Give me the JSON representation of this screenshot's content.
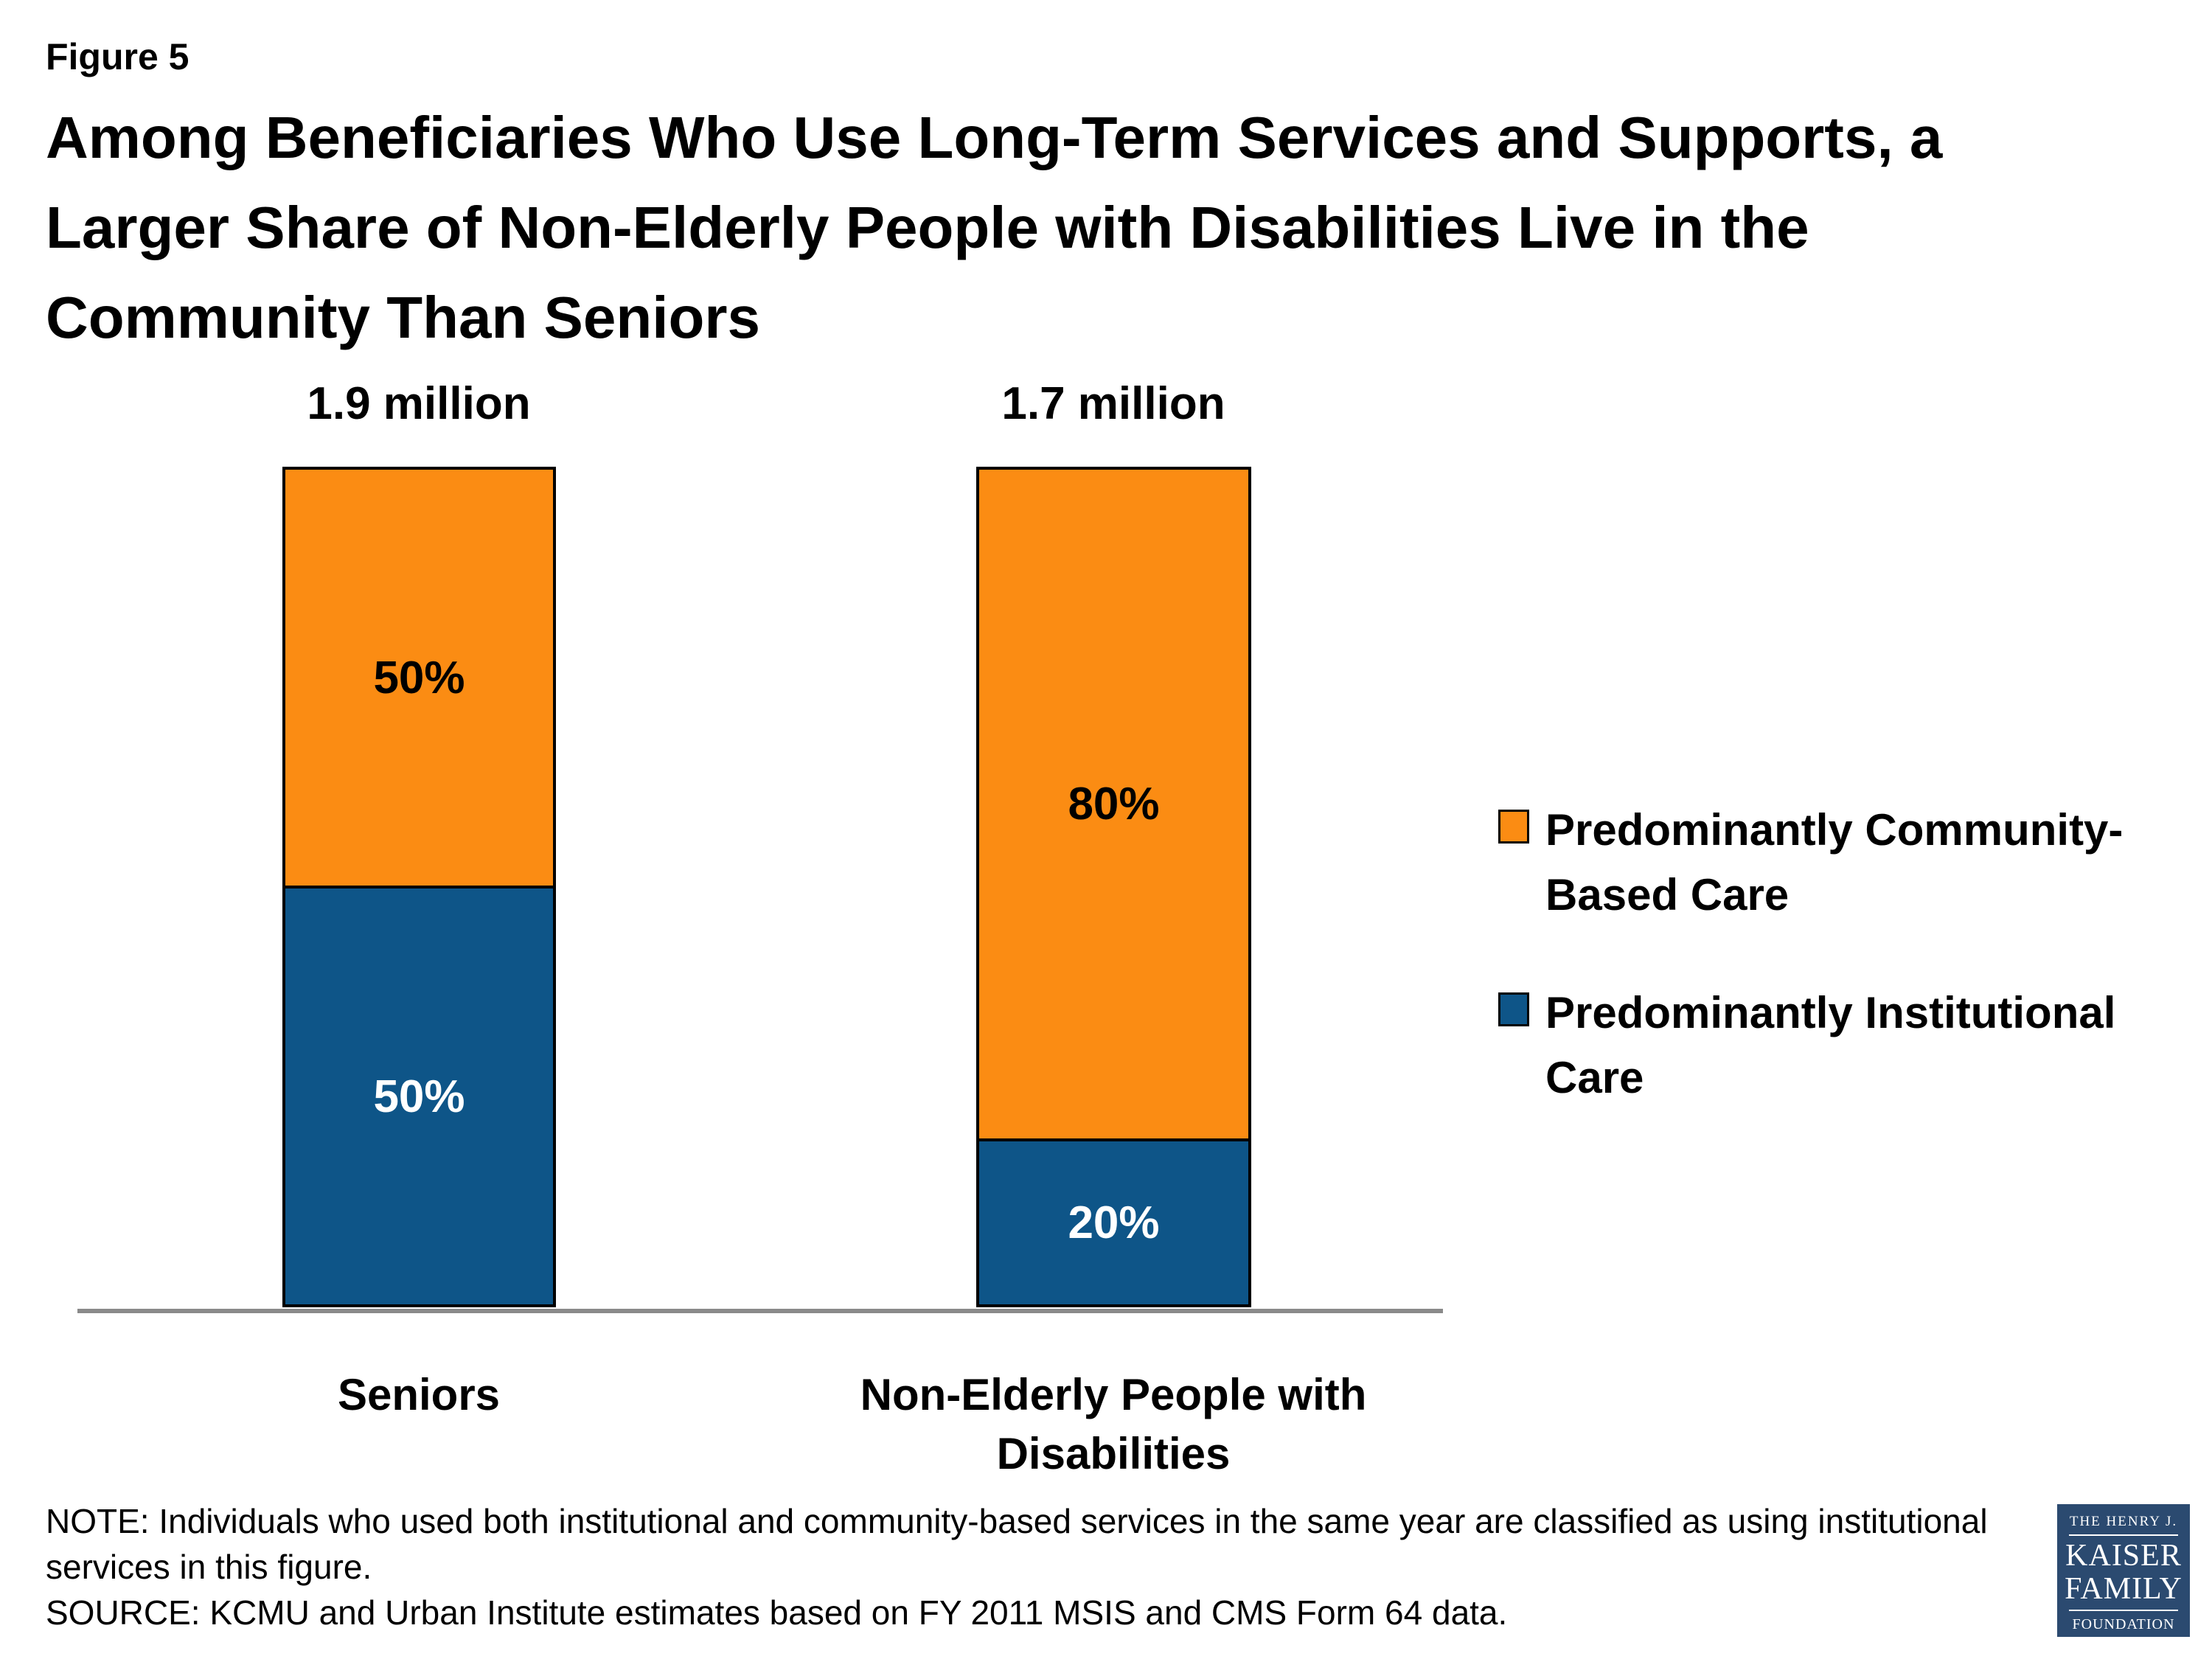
{
  "figure_label": "Figure 5",
  "title_lines": [
    "Among Beneficiaries Who Use Long-Term Services and Supports, a",
    "Larger Share of Non-Elderly People with Disabilities Live in the",
    "Community Than Seniors"
  ],
  "chart_data": {
    "type": "bar",
    "stacked": true,
    "categories": [
      "Seniors",
      "Non-Elderly People with Disabilities"
    ],
    "bar_totals": [
      "1.9 million",
      "1.7 million"
    ],
    "series": [
      {
        "name": "Predominantly Community-Based Care",
        "color": "#FB8C13",
        "values": [
          50,
          80
        ],
        "labels": [
          "50%",
          "80%"
        ]
      },
      {
        "name": "Predominantly Institutional Care",
        "color": "#0E5588",
        "values": [
          50,
          20
        ],
        "labels": [
          "50%",
          "20%"
        ]
      }
    ],
    "unit": "percent",
    "ylim": [
      0,
      100
    ],
    "grid": false,
    "legend_position": "right"
  },
  "legend": {
    "items": [
      {
        "lines": [
          "Predominantly Community-",
          "Based Care"
        ],
        "color": "#FB8C13"
      },
      {
        "lines": [
          "Predominantly Institutional",
          "Care"
        ],
        "color": "#0E5588"
      }
    ]
  },
  "notes": [
    "NOTE: Individuals who used both institutional and community-based services in the same year are classified as using institutional",
    "services in this figure.",
    "SOURCE: KCMU and Urban Institute estimates based on FY 2011 MSIS and CMS Form 64 data."
  ],
  "logo": {
    "line1": "THE HENRY J.",
    "line2": "KAISER",
    "line3": "FAMILY",
    "line4": "FOUNDATION"
  },
  "colors": {
    "community": "#FB8C13",
    "institutional": "#0E5588",
    "axis_line": "#8A8A8A",
    "logo_background": "#2B4A70"
  }
}
